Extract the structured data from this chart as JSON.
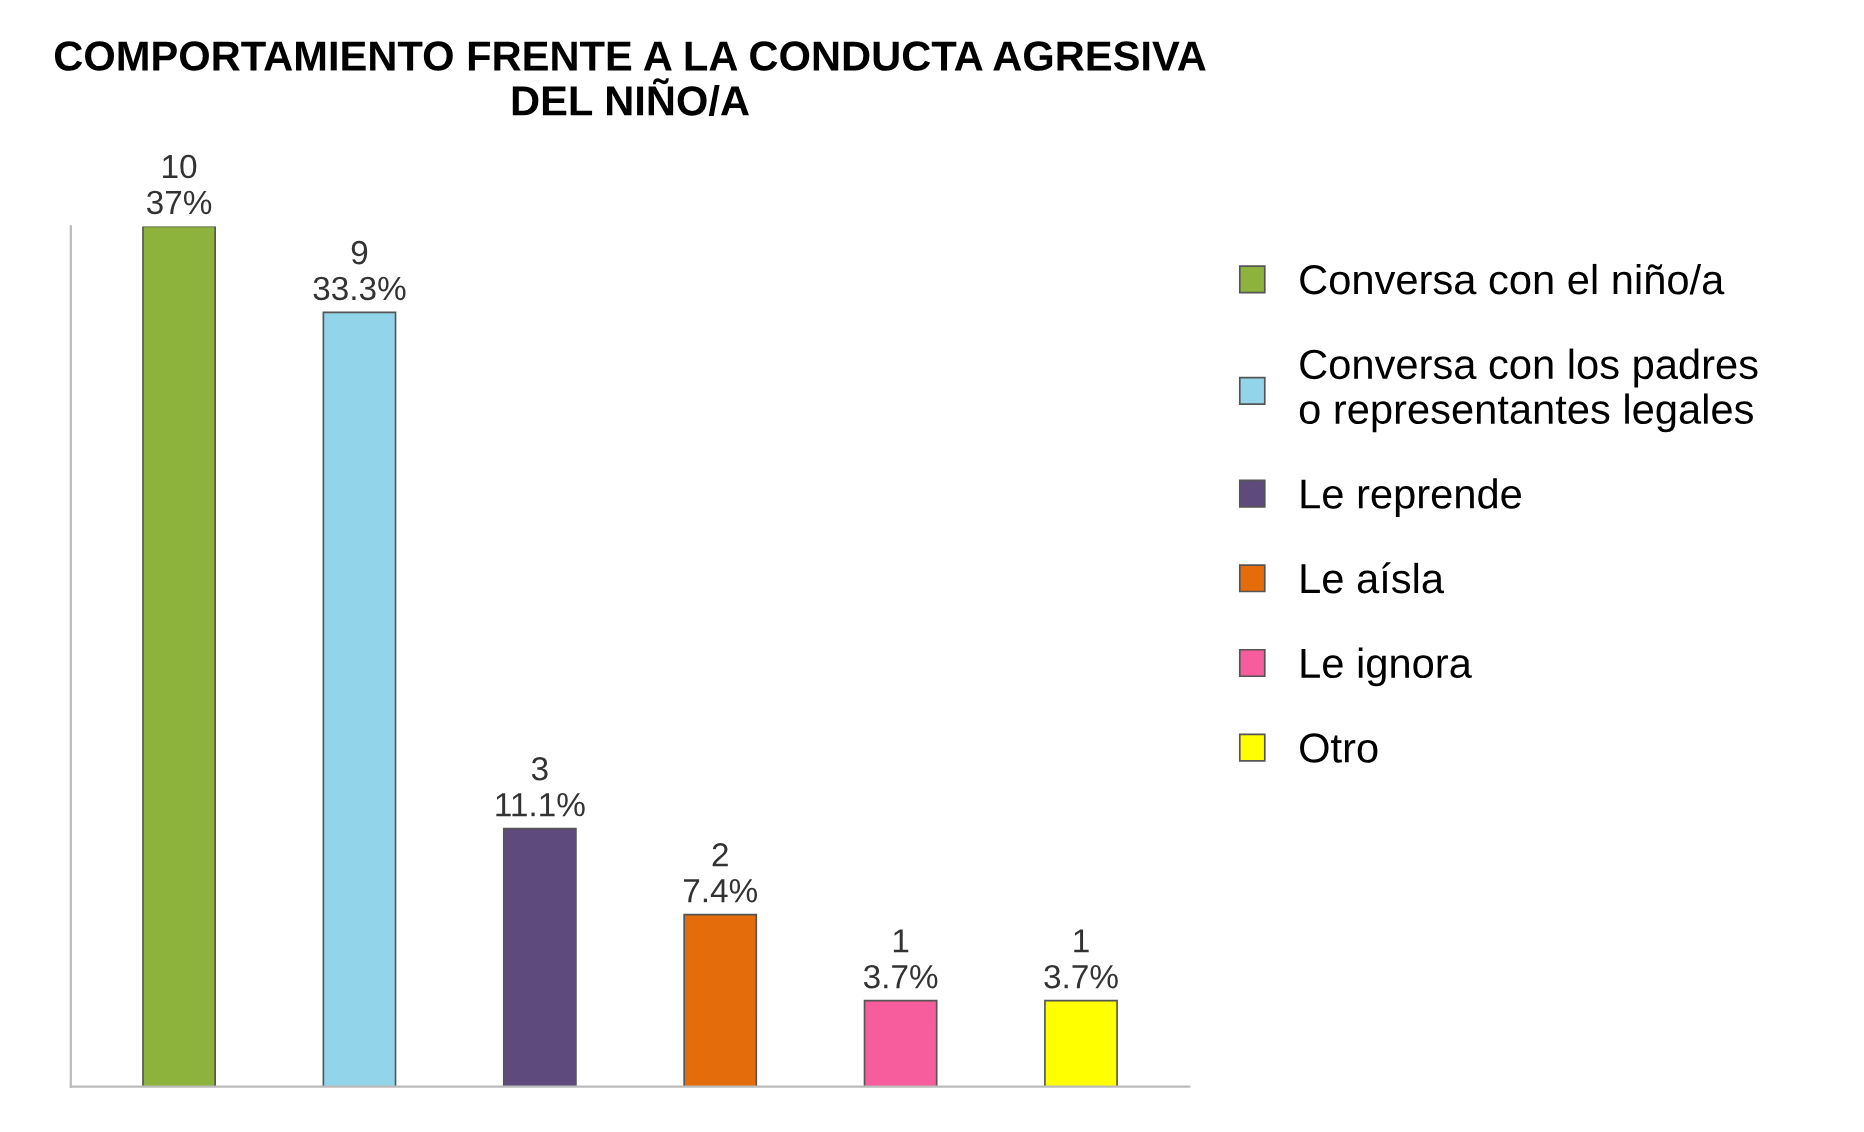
{
  "chart_data": {
    "type": "bar",
    "title": "COMPORTAMIENTO FRENTE A LA CONDUCTA AGRESIVA\nDEL NIÑO/A",
    "categories": [
      null,
      null,
      null,
      null,
      null,
      null
    ],
    "series": [
      {
        "name": "Conversa con el niño/a",
        "color": "#8db33c",
        "values": [
          10,
          null,
          null,
          null,
          null,
          null
        ],
        "value_labels": [
          "10\n37%",
          null,
          null,
          null,
          null,
          null
        ]
      },
      {
        "name": "Conversa con los padres\no representantes legales",
        "color": "#92d4ea",
        "values": [
          null,
          9,
          null,
          null,
          null,
          null
        ],
        "value_labels": [
          null,
          "9\n33.3%",
          null,
          null,
          null,
          null
        ]
      },
      {
        "name": "Le reprende",
        "color": "#5f4a7d",
        "values": [
          null,
          null,
          3,
          null,
          null,
          null
        ],
        "value_labels": [
          null,
          null,
          "3\n11.1%",
          null,
          null,
          null
        ]
      },
      {
        "name": "Le aísla",
        "color": "#e46c0a",
        "values": [
          null,
          null,
          null,
          2,
          null,
          null
        ],
        "value_labels": [
          null,
          null,
          null,
          "2\n7.4%",
          null,
          null
        ]
      },
      {
        "name": "Le ignora",
        "color": "#f75c9c",
        "values": [
          null,
          null,
          null,
          null,
          1,
          null
        ],
        "value_labels": [
          null,
          null,
          null,
          null,
          "1\n3.7%",
          null
        ]
      },
      {
        "name": "Otro",
        "color": "#ffff00",
        "values": [
          null,
          null,
          null,
          null,
          null,
          1
        ],
        "value_labels": [
          null,
          null,
          null,
          null,
          null,
          "1\n3.7%"
        ]
      }
    ],
    "stacked": true,
    "legend": "right"
  }
}
